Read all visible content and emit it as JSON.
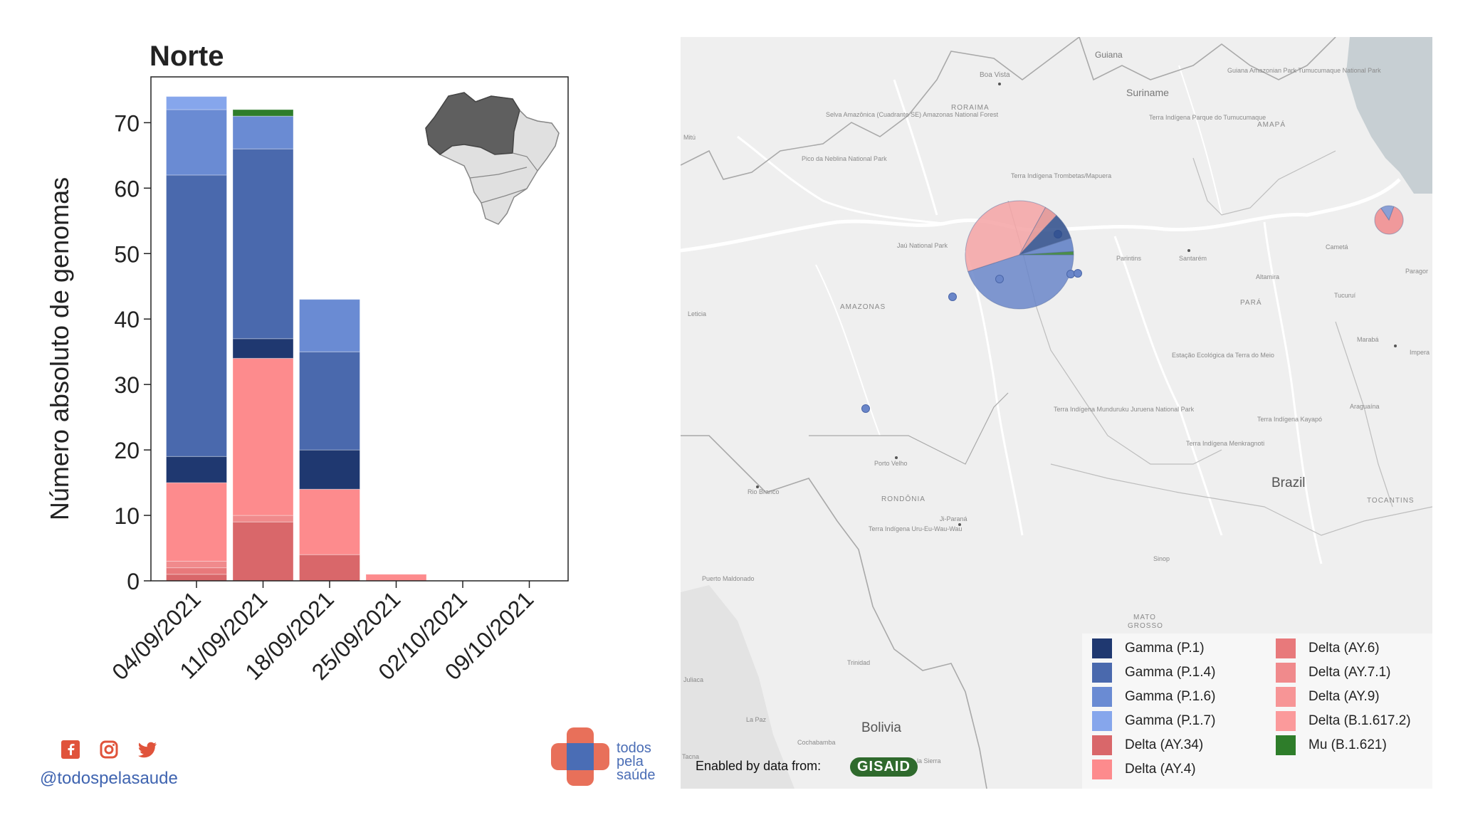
{
  "chart_data": {
    "type": "bar",
    "stacked": true,
    "title": "Norte",
    "ylabel": "Número absoluto de genomas",
    "xlabel": "",
    "categories": [
      "04/09/2021",
      "11/09/2021",
      "18/09/2021",
      "25/09/2021",
      "02/10/2021",
      "09/10/2021"
    ],
    "ylim": [
      0,
      77
    ],
    "yticks": [
      0,
      10,
      20,
      30,
      40,
      50,
      60,
      70
    ],
    "grid": false,
    "series": [
      {
        "name": "Delta (AY.34)",
        "color": "#d9676a",
        "values": [
          1,
          9,
          4,
          0,
          0,
          0
        ]
      },
      {
        "name": "Delta (AY.6)",
        "color": "#e8797b",
        "values": [
          1,
          0,
          0,
          0,
          0,
          0
        ]
      },
      {
        "name": "Delta (AY.7.1)",
        "color": "#f08a8c",
        "values": [
          1,
          1,
          0,
          0,
          0,
          0
        ]
      },
      {
        "name": "Delta (AY.9)",
        "color": "#f79596",
        "values": [
          0,
          0,
          0,
          0,
          0,
          0
        ]
      },
      {
        "name": "Delta (B.1.617.2)",
        "color": "#fb9a9b",
        "values": [
          0,
          0,
          0,
          0,
          0,
          0
        ]
      },
      {
        "name": "Delta (AY.4)",
        "color": "#fd8b8d",
        "values": [
          12,
          24,
          10,
          1,
          0,
          0
        ]
      },
      {
        "name": "Gamma (P.1)",
        "color": "#1f3870",
        "values": [
          4,
          3,
          6,
          0,
          0,
          0
        ]
      },
      {
        "name": "Gamma (P.1.4)",
        "color": "#4a69ad",
        "values": [
          43,
          29,
          15,
          0,
          0,
          0
        ]
      },
      {
        "name": "Gamma (P.1.6)",
        "color": "#6a8bd3",
        "values": [
          10,
          5,
          8,
          0,
          0,
          0
        ]
      },
      {
        "name": "Gamma (P.1.7)",
        "color": "#86a6ec",
        "values": [
          2,
          0,
          0,
          0,
          0,
          0
        ]
      },
      {
        "name": "Mu (B.1.621)",
        "color": "#2e7d2a",
        "values": [
          0,
          1,
          0,
          0,
          0,
          0
        ]
      }
    ]
  },
  "social": {
    "icons": [
      "facebook-icon",
      "instagram-icon",
      "twitter-icon"
    ],
    "handle": "@todospelasaude"
  },
  "brand": {
    "line1": "todos",
    "line2": "pela",
    "line3": "saúde"
  },
  "map": {
    "labels": {
      "suriname": "Suriname",
      "guiana": "Guiana",
      "boa_vista": "Boa Vista",
      "roraima": "RORAIMA",
      "amapa": "AMAPÁ",
      "amazonas": "AMAZONAS",
      "para": "PARÁ",
      "rondonia": "RONDÔNIA",
      "mato_grosso_1": "MATO",
      "mato_grosso_2": "GROSSO",
      "tocantins": "TOCANTINS",
      "brazil": "Brazil",
      "bolivia": "Bolivia",
      "santarem": "Santarém",
      "parintins": "Parintins",
      "altamira": "Altamira",
      "cameta": "Cametá",
      "maraba": "Marabá",
      "araguaina": "Araguaína",
      "porto_velho": "Porto Velho",
      "rio_branco": "Rio Branco",
      "ji_parana": "Ji-Paraná",
      "sinop": "Sinop",
      "trinidad": "Trinidad",
      "la_paz": "La Paz",
      "cochabamba": "Cochabamba",
      "leticia": "Leticia",
      "mitu": "Mitú",
      "tucurui": "Tucuruí",
      "jau": "Jaú National Park",
      "pico": "Pico da Neblina National Park",
      "selva": "Selva Amazônica (Cuadrante SE) Amazonas National Forest",
      "trombetas": "Terra Indígena Trombetas/Mapuera",
      "tumucumaque_ti": "Terra Indígena Parque do Tumucumaque",
      "tumucumaque_np": "Guiana Amazonian Park Tumucumaque National Park",
      "terra_meio": "Estação Ecológica da Terra do Meio",
      "munduruku": "Terra Indígena Munduruku Juruena National Park",
      "kayapo": "Terra Indígena Kayapó",
      "menkragnoti": "Terra Indígena Menkragnoti",
      "uru": "Terra Indígena Uru-Eu-Wau-Wau",
      "puerto": "Puerto Maldonado",
      "juliaca": "Juliaca",
      "tacna": "Tacna",
      "sierra": "la de la Sierra",
      "paragominas": "Paragor",
      "imperatriz": "Impera"
    },
    "pie_manaus": [
      {
        "name": "Gamma (P.1.4)",
        "color": "#6a86c9",
        "value": 45
      },
      {
        "name": "Delta (AY.4)",
        "color": "#f5a3a4",
        "value": 38
      },
      {
        "name": "Delta (AY.34)",
        "color": "#e28f8f",
        "value": 4
      },
      {
        "name": "Gamma (P.1)",
        "color": "#2b4b8a",
        "value": 8
      },
      {
        "name": "Gamma (P.1.6)",
        "color": "#5c7cc4",
        "value": 4
      },
      {
        "name": "Mu (B.1.621)",
        "color": "#2e7d2a",
        "value": 1
      }
    ],
    "pie_belem": [
      {
        "name": "Delta (AY.4)",
        "color": "#f08a8c",
        "value": 85
      },
      {
        "name": "Gamma (P.1.4)",
        "color": "#7891d0",
        "value": 15
      }
    ]
  },
  "legend": {
    "items": [
      {
        "label": "Gamma (P.1)",
        "color": "#1f3870"
      },
      {
        "label": "Gamma (P.1.4)",
        "color": "#4a69ad"
      },
      {
        "label": "Gamma (P.1.6)",
        "color": "#6a8bd3"
      },
      {
        "label": "Gamma (P.1.7)",
        "color": "#86a6ec"
      },
      {
        "label": "Delta (AY.34)",
        "color": "#d9676a"
      },
      {
        "label": "Delta (AY.4)",
        "color": "#fd8b8d"
      },
      {
        "label": "Delta (AY.6)",
        "color": "#e8797b"
      },
      {
        "label": "Delta (AY.7.1)",
        "color": "#f08a8c"
      },
      {
        "label": "Delta (AY.9)",
        "color": "#f79596"
      },
      {
        "label": "Delta (B.1.617.2)",
        "color": "#fb9a9b"
      },
      {
        "label": "Mu (B.1.621)",
        "color": "#2e7d2a"
      }
    ]
  },
  "attribution": {
    "text": "Enabled by data from:",
    "logo": "GISAID"
  }
}
